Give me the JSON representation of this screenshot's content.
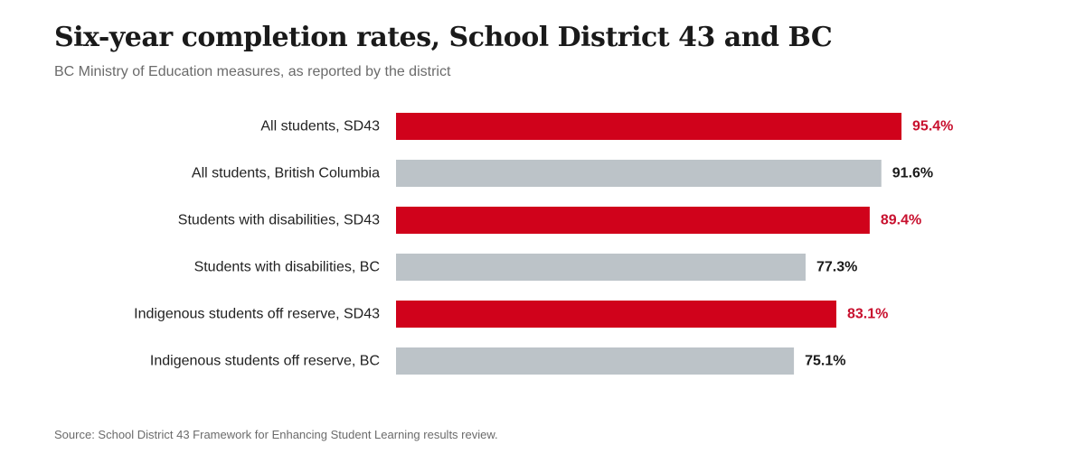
{
  "chart_data": {
    "type": "bar",
    "orientation": "horizontal",
    "title": "Six-year completion rates, School District 43 and BC",
    "subtitle": "BC Ministry of Education measures, as reported by the district",
    "categories": [
      "All students, SD43",
      "All students, British Columbia",
      "Students with disabilities, SD43",
      "Students with disabilities, BC",
      "Indigenous students off reserve, SD43",
      "Indigenous students off reserve, BC"
    ],
    "values": [
      95.4,
      91.6,
      89.4,
      77.3,
      83.1,
      75.1
    ],
    "value_labels": [
      "95.4%",
      "91.6%",
      "89.4%",
      "77.3%",
      "83.1%",
      "75.1%"
    ],
    "groups": [
      "SD43",
      "BC",
      "SD43",
      "BC",
      "SD43",
      "BC"
    ],
    "unit": "%",
    "xlim": [
      0,
      100
    ],
    "grid": false,
    "legend": "none",
    "source": "Source: School District 43 Framework for Enhancing Student Learning results review."
  },
  "colors": {
    "SD43": "#d0021b",
    "BC": "#bcc3c8",
    "SD43_label": "#c8102e",
    "BC_label": "#1a1a1a"
  }
}
